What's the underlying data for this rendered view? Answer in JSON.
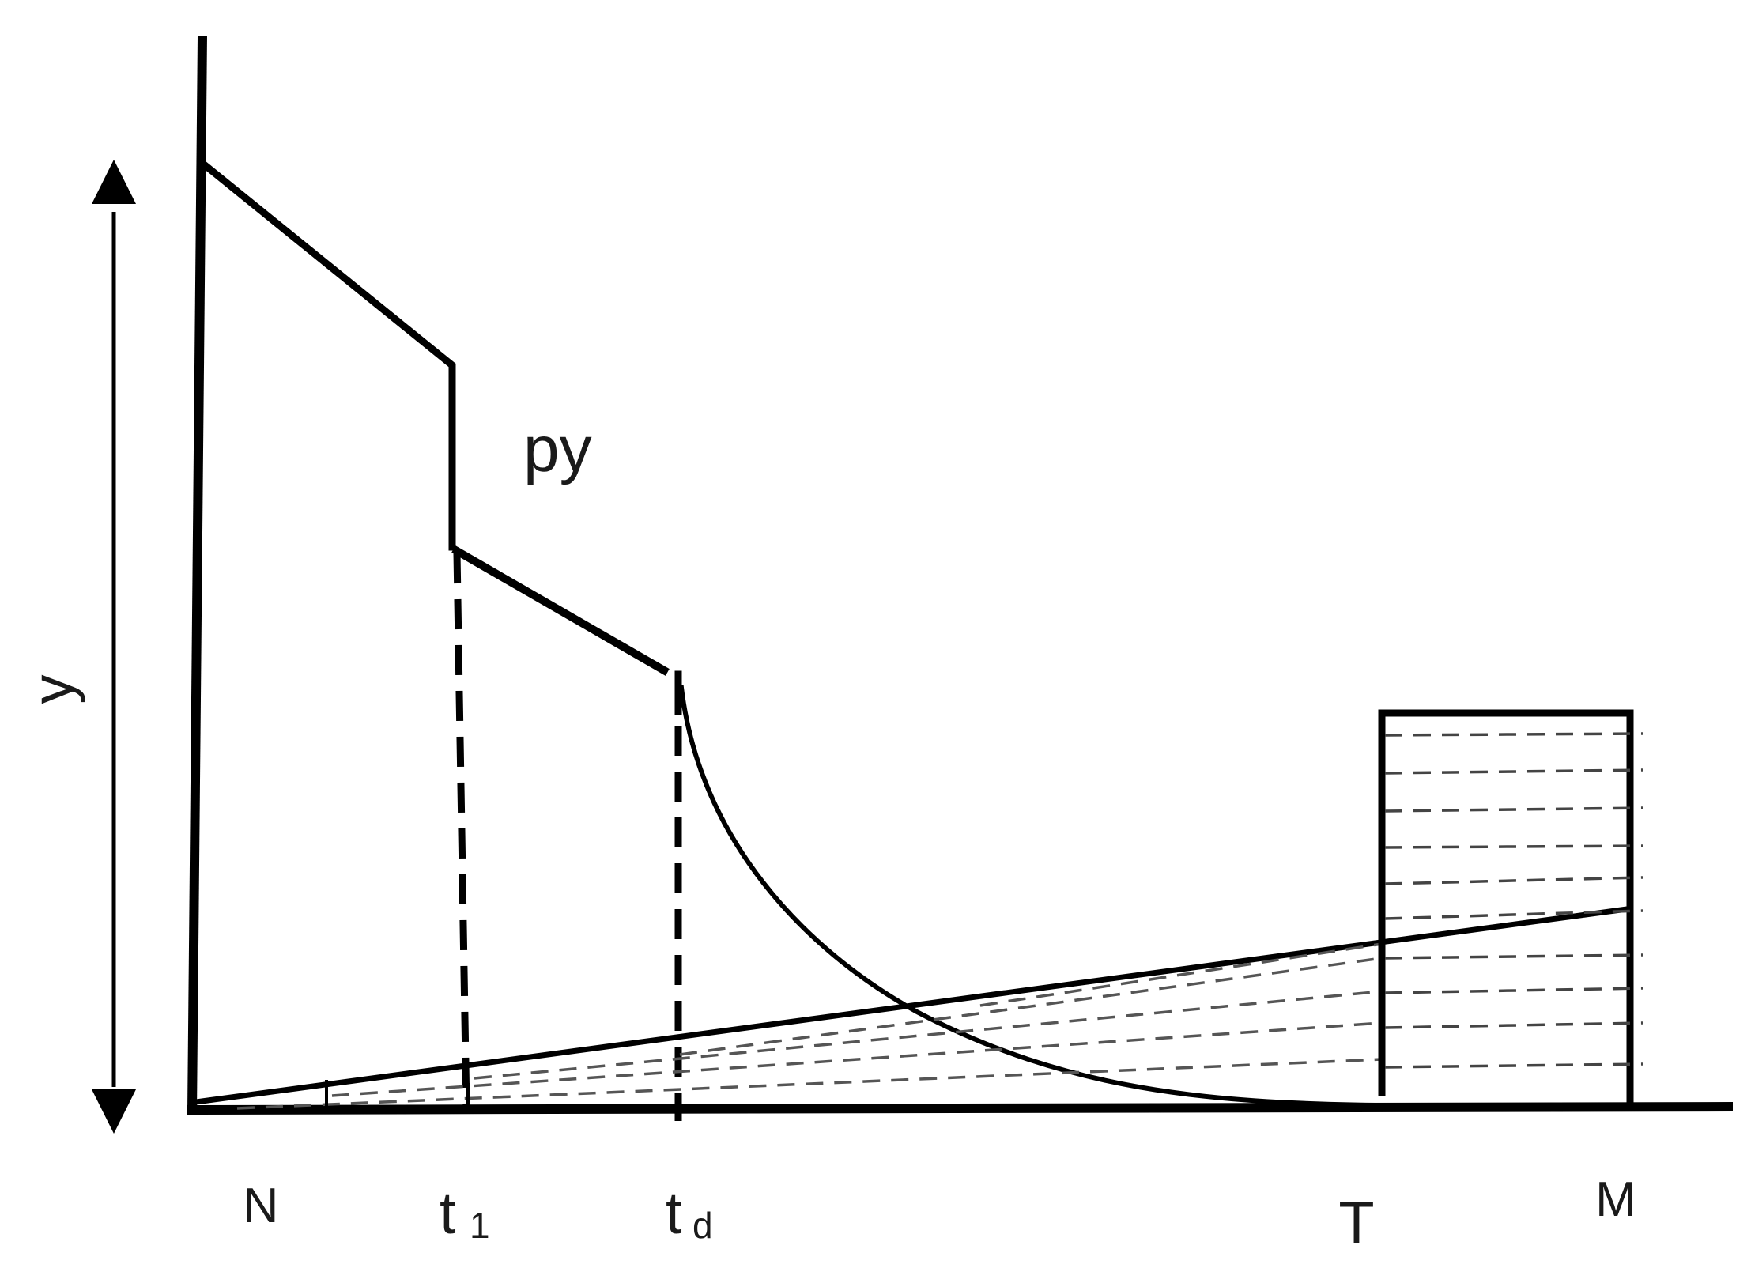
{
  "diagram": {
    "labels": {
      "y_axis": "y",
      "curve": "py",
      "n": "N",
      "t1": "t",
      "t1_sub": "1",
      "td": "t",
      "td_sub": "d",
      "t": "T",
      "m": "M"
    },
    "colors": {
      "line": "#000000",
      "dash": "#555555"
    }
  }
}
